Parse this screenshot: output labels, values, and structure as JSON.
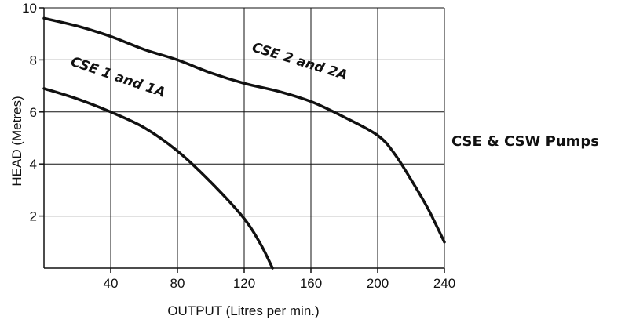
{
  "chart_data": {
    "type": "line",
    "title": "CSE & CSW Pumps",
    "xlabel": "OUTPUT (Litres per min.)",
    "ylabel": "HEAD (Metres)",
    "xlim": [
      0,
      240
    ],
    "ylim": [
      0,
      10
    ],
    "xticks": [
      40,
      80,
      120,
      160,
      200,
      240
    ],
    "yticks": [
      2,
      4,
      6,
      8,
      10
    ],
    "x_tick_labels": [
      "40",
      "80",
      "120",
      "160",
      "200",
      "240"
    ],
    "y_tick_labels": [
      "2",
      "4",
      "6",
      "8",
      "10"
    ],
    "grid": true,
    "series": [
      {
        "name": "CSE 1 and 1A",
        "points": [
          [
            0,
            6.9
          ],
          [
            20,
            6.5
          ],
          [
            40,
            6.0
          ],
          [
            60,
            5.4
          ],
          [
            80,
            4.5
          ],
          [
            100,
            3.3
          ],
          [
            120,
            1.9
          ],
          [
            130,
            0.9
          ],
          [
            137,
            0
          ]
        ]
      },
      {
        "name": "CSE 2 and 2A",
        "points": [
          [
            0,
            9.6
          ],
          [
            20,
            9.3
          ],
          [
            40,
            8.9
          ],
          [
            60,
            8.4
          ],
          [
            80,
            8.0
          ],
          [
            100,
            7.5
          ],
          [
            120,
            7.1
          ],
          [
            140,
            6.8
          ],
          [
            160,
            6.4
          ],
          [
            180,
            5.8
          ],
          [
            200,
            5.1
          ],
          [
            210,
            4.4
          ],
          [
            220,
            3.4
          ],
          [
            230,
            2.3
          ],
          [
            240,
            1.0
          ]
        ]
      }
    ]
  }
}
